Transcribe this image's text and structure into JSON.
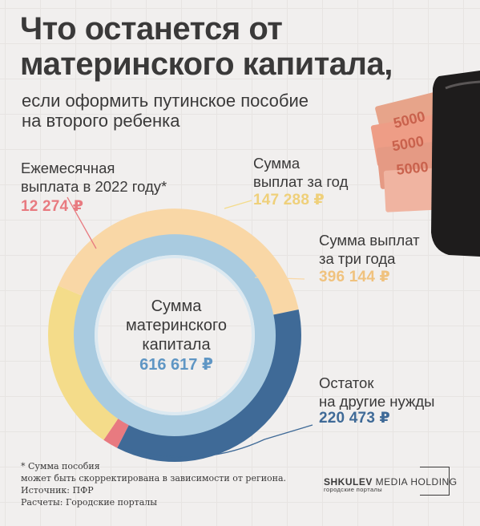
{
  "title_line1": "Что останется от",
  "title_line2": "материнского капитала,",
  "subtitle_line1": "если оформить путинское пособие",
  "subtitle_line2": "на второго ребенка",
  "colors": {
    "monthly": "#e87a80",
    "year": "#f4dc8a",
    "three_years": "#f9d7a6",
    "remainder": "#3f6a97",
    "total": "#a9cbe0",
    "text": "#3a3939"
  },
  "labels": {
    "monthly_line1": "Ежемесячная",
    "monthly_line2": "выплата в 2022 году*",
    "monthly_value": "12 274 ₽",
    "year_line1": "Сумма",
    "year_line2": "выплат за год",
    "year_value": "147 288 ₽",
    "three_line1": "Сумма выплат",
    "three_line2": "за три года",
    "three_value": "396 144 ₽",
    "rest_line1": "Остаток",
    "rest_line2": "на другие нужды",
    "rest_value": "220 473 ₽",
    "center_line1": "Сумма",
    "center_line2": "материнского",
    "center_line3": "капитала",
    "center_value": "616 617 ₽"
  },
  "footnote": {
    "line1": "* Сумма пособия",
    "line2": "может быть скорректирована в зависимости от региона.",
    "line3": "Источник: ПФР",
    "line4": "Расчеты: Городские порталы"
  },
  "logo": {
    "name_bold": "SHKULEV",
    "name_rest": " MEDIA HOLDING",
    "sub": "городские порталы"
  },
  "chart_data": {
    "type": "donut",
    "total": 616617,
    "total_label": "Сумма материнского капитала",
    "series": [
      {
        "name": "Ежемесячная выплата в 2022 году*",
        "value": 12274
      },
      {
        "name": "Сумма выплат за год",
        "value": 147288
      },
      {
        "name": "Сумма выплат за три года",
        "value": 396144
      },
      {
        "name": "Остаток на другие нужды",
        "value": 220473
      }
    ]
  }
}
